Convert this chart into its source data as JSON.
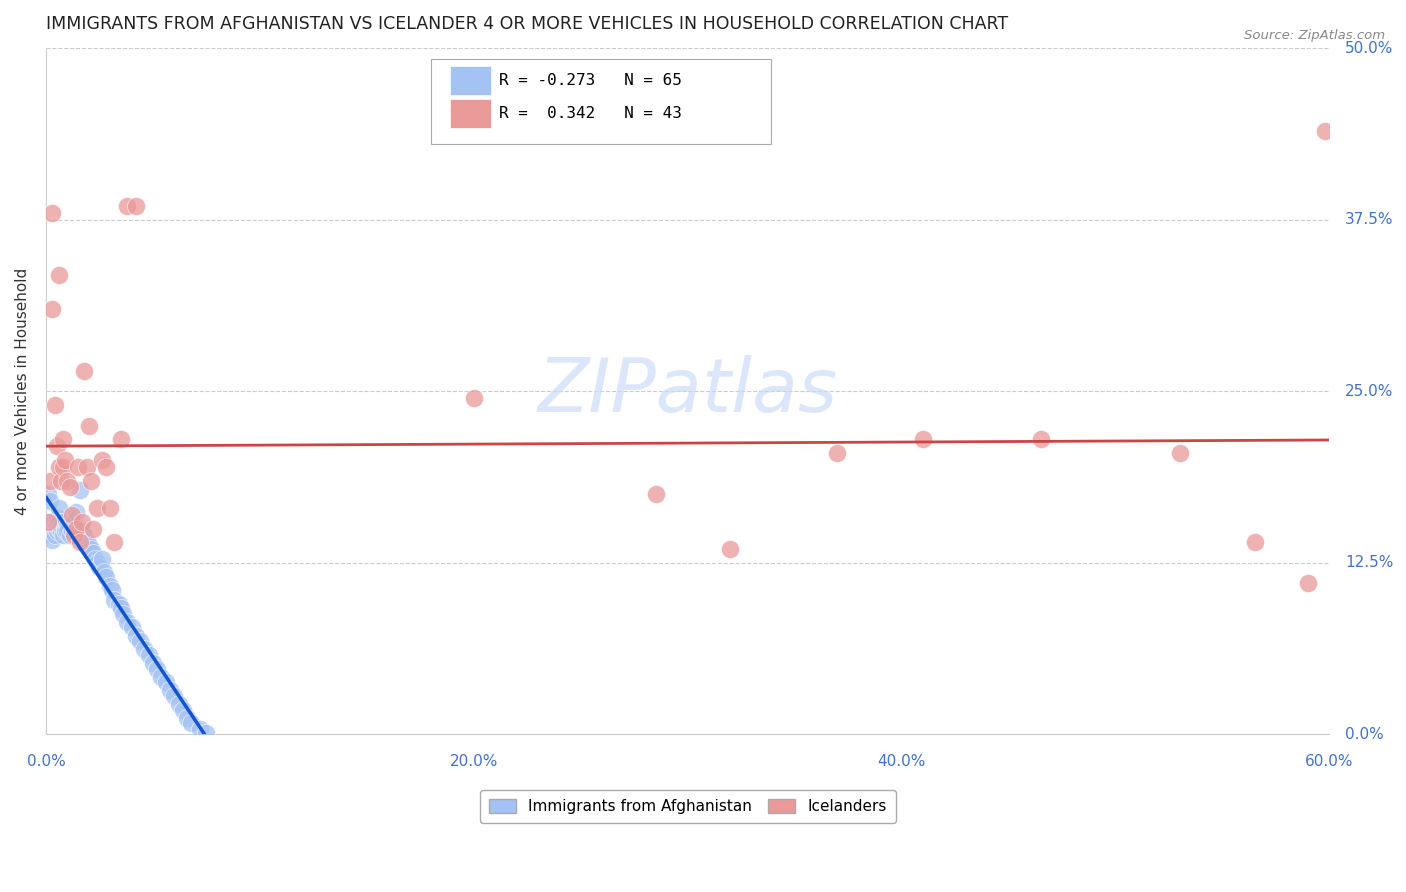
{
  "title": "IMMIGRANTS FROM AFGHANISTAN VS ICELANDER 4 OR MORE VEHICLES IN HOUSEHOLD CORRELATION CHART",
  "source": "Source: ZipAtlas.com",
  "xlabel_ticks": [
    "0.0%",
    "20.0%",
    "40.0%",
    "60.0%"
  ],
  "ylabel_ticks": [
    "0.0%",
    "12.5%",
    "25.0%",
    "37.5%",
    "50.0%"
  ],
  "ylabel_label": "4 or more Vehicles in Household",
  "legend_label1": "Immigrants from Afghanistan",
  "legend_label2": "Icelanders",
  "R1": -0.273,
  "N1": 65,
  "R2": 0.342,
  "N2": 43,
  "color_blue": "#a4c2f4",
  "color_pink": "#ea9999",
  "trendline_blue": "#1155cc",
  "trendline_pink": "#cc4444",
  "background": "#ffffff",
  "grid_color": "#cccccc",
  "title_color": "#222222",
  "axis_color": "#4472c4",
  "watermark_color": "#c9daf8",
  "blue_x": [
    0.001,
    0.002,
    0.002,
    0.003,
    0.003,
    0.003,
    0.004,
    0.004,
    0.005,
    0.005,
    0.005,
    0.006,
    0.006,
    0.006,
    0.007,
    0.007,
    0.008,
    0.008,
    0.009,
    0.009,
    0.01,
    0.01,
    0.011,
    0.012,
    0.013,
    0.013,
    0.014,
    0.015,
    0.016,
    0.017,
    0.018,
    0.019,
    0.02,
    0.021,
    0.022,
    0.023,
    0.024,
    0.025,
    0.026,
    0.027,
    0.028,
    0.03,
    0.031,
    0.032,
    0.034,
    0.035,
    0.036,
    0.038,
    0.04,
    0.042,
    0.044,
    0.046,
    0.048,
    0.05,
    0.052,
    0.054,
    0.056,
    0.058,
    0.06,
    0.062,
    0.064,
    0.066,
    0.068,
    0.072,
    0.075
  ],
  "blue_y": [
    0.175,
    0.17,
    0.155,
    0.148,
    0.145,
    0.142,
    0.15,
    0.145,
    0.158,
    0.152,
    0.148,
    0.165,
    0.155,
    0.15,
    0.148,
    0.152,
    0.155,
    0.145,
    0.15,
    0.148,
    0.152,
    0.148,
    0.145,
    0.148,
    0.15,
    0.155,
    0.162,
    0.145,
    0.178,
    0.148,
    0.145,
    0.14,
    0.138,
    0.135,
    0.132,
    0.128,
    0.125,
    0.122,
    0.128,
    0.118,
    0.115,
    0.108,
    0.105,
    0.098,
    0.095,
    0.092,
    0.088,
    0.082,
    0.078,
    0.072,
    0.068,
    0.062,
    0.058,
    0.052,
    0.048,
    0.042,
    0.038,
    0.032,
    0.028,
    0.022,
    0.018,
    0.012,
    0.008,
    0.004,
    0.001
  ],
  "pink_x": [
    0.001,
    0.002,
    0.003,
    0.003,
    0.004,
    0.005,
    0.006,
    0.006,
    0.007,
    0.008,
    0.008,
    0.009,
    0.01,
    0.011,
    0.012,
    0.013,
    0.014,
    0.015,
    0.016,
    0.017,
    0.018,
    0.019,
    0.02,
    0.021,
    0.022,
    0.024,
    0.026,
    0.028,
    0.03,
    0.032,
    0.035,
    0.038,
    0.042,
    0.2,
    0.285,
    0.32,
    0.37,
    0.41,
    0.465,
    0.53,
    0.565,
    0.59,
    0.598
  ],
  "pink_y": [
    0.155,
    0.185,
    0.38,
    0.31,
    0.24,
    0.21,
    0.195,
    0.335,
    0.185,
    0.215,
    0.195,
    0.2,
    0.185,
    0.18,
    0.16,
    0.145,
    0.15,
    0.195,
    0.14,
    0.155,
    0.265,
    0.195,
    0.225,
    0.185,
    0.15,
    0.165,
    0.2,
    0.195,
    0.165,
    0.14,
    0.215,
    0.385,
    0.385,
    0.245,
    0.175,
    0.135,
    0.205,
    0.215,
    0.215,
    0.205,
    0.14,
    0.11,
    0.44
  ]
}
